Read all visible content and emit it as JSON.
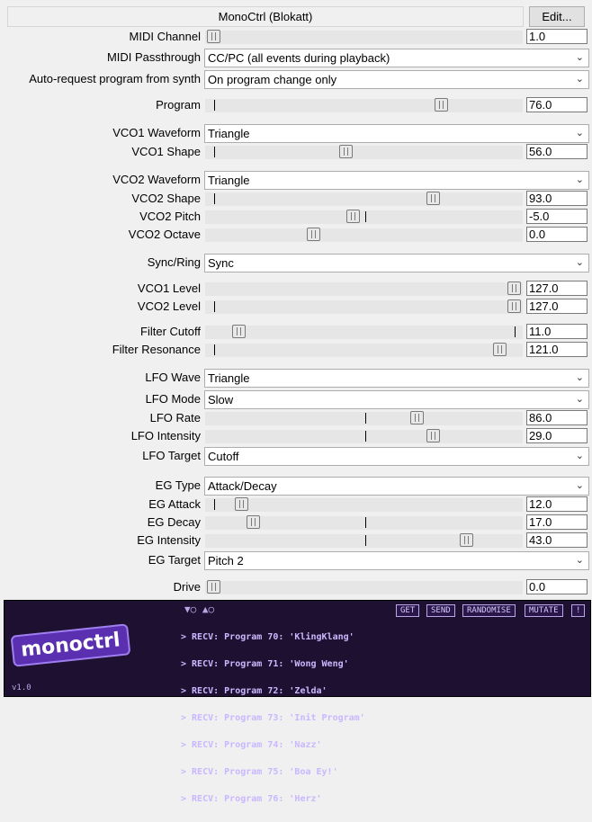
{
  "header": {
    "title": "MonoCtrl (Blokatt)",
    "edit_label": "Edit..."
  },
  "midi": {
    "channel": {
      "label": "MIDI Channel",
      "value": "1.0",
      "level": 0.0
    },
    "passthrough": {
      "label": "MIDI Passthrough",
      "selected": "CC/PC (all events during playback)"
    },
    "autorequest": {
      "label": "Auto-request program from synth",
      "selected": "On program change only"
    }
  },
  "program": {
    "label": "Program",
    "value": "76.0",
    "level": 0.6
  },
  "vco1": {
    "waveform": {
      "label": "VCO1 Waveform",
      "selected": "Triangle"
    },
    "shape": {
      "label": "VCO1 Shape",
      "value": "56.0",
      "level": 0.44
    }
  },
  "vco2": {
    "waveform": {
      "label": "VCO2 Waveform",
      "selected": "Triangle"
    },
    "shape": {
      "label": "VCO2 Shape",
      "value": "93.0",
      "level": 0.73
    },
    "pitch": {
      "label": "VCO2 Pitch",
      "value": "-5.0"
    },
    "octave": {
      "label": "VCO2 Octave",
      "value": "0.0"
    }
  },
  "syncring": {
    "label": "Sync/Ring",
    "selected": "Sync"
  },
  "levels": {
    "vco1": {
      "label": "VCO1 Level",
      "value": "127.0",
      "level": 1.0
    },
    "vco2": {
      "label": "VCO2 Level",
      "value": "127.0",
      "level": 1.0
    }
  },
  "filter": {
    "cutoff": {
      "label": "Filter Cutoff",
      "value": "11.0"
    },
    "resonance": {
      "label": "Filter Resonance",
      "value": "121.0"
    }
  },
  "lfo": {
    "wave": {
      "label": "LFO Wave",
      "selected": "Triangle"
    },
    "mode": {
      "label": "LFO Mode",
      "selected": "Slow"
    },
    "rate": {
      "label": "LFO Rate",
      "value": "86.0"
    },
    "intensity": {
      "label": "LFO Intensity",
      "value": "29.0"
    },
    "target": {
      "label": "LFO Target",
      "selected": "Cutoff"
    }
  },
  "eg": {
    "type": {
      "label": "EG Type",
      "selected": "Attack/Decay"
    },
    "attack": {
      "label": "EG Attack",
      "value": "12.0"
    },
    "decay": {
      "label": "EG Decay",
      "value": "17.0"
    },
    "intensity": {
      "label": "EG Intensity",
      "value": "43.0"
    },
    "target": {
      "label": "EG Target",
      "selected": "Pitch 2"
    }
  },
  "drive": {
    "label": "Drive",
    "value": "0.0"
  },
  "panel": {
    "logo": "monoctrl",
    "version": "v1.0",
    "tools": "▼○ ▲○",
    "buttons": {
      "get": "GET",
      "send": "SEND",
      "randomise": "RANDOMISE",
      "mutate": "MUTATE",
      "info": "!"
    },
    "log": [
      "> RECV: Program 70: 'KlingKlang'",
      "> RECV: Program 71: 'Wong Weng'",
      "> RECV: Program 72: 'Zelda'",
      "> RECV: Program 73: 'Init Program'",
      "> RECV: Program 74: 'Nazz'",
      "> RECV: Program 75: 'Boa Ey!'",
      "> RECV: Program 76: 'Herz'"
    ]
  }
}
